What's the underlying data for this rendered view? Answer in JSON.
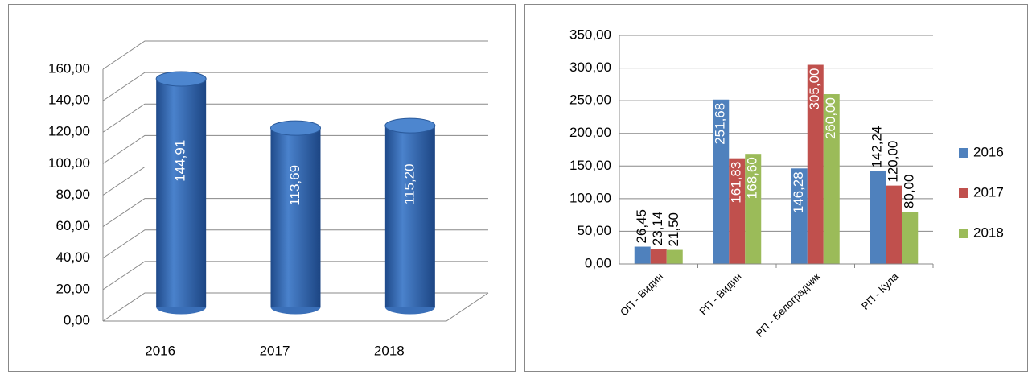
{
  "chart_data": [
    {
      "type": "cylinder",
      "categories": [
        "2016",
        "2017",
        "2018"
      ],
      "values": [
        144.91,
        113.69,
        115.2
      ],
      "value_labels": [
        "144,91",
        "113,69",
        "115,20"
      ],
      "color": "#3a6fb8",
      "ylim": [
        0,
        160
      ],
      "yticks": [
        {
          "value": 0,
          "label": "0,00"
        },
        {
          "value": 20,
          "label": "20,00"
        },
        {
          "value": 40,
          "label": "40,00"
        },
        {
          "value": 60,
          "label": "60,00"
        },
        {
          "value": 80,
          "label": "80,00"
        },
        {
          "value": 100,
          "label": "100,00"
        },
        {
          "value": 120,
          "label": "120,00"
        },
        {
          "value": 140,
          "label": "140,00"
        },
        {
          "value": 160,
          "label": "160,00"
        }
      ],
      "grid": true
    },
    {
      "type": "bar",
      "categories": [
        "ОП - Видин",
        "РП - Видин",
        "РП - Белоградчик",
        "РП - Кула"
      ],
      "series": [
        {
          "name": "2016",
          "color": "#4f81bd",
          "values": [
            26.45,
            251.68,
            146.28,
            142.24
          ],
          "value_labels": [
            "26,45",
            "251,68",
            "146,28",
            "142,24"
          ]
        },
        {
          "name": "2017",
          "color": "#c0504d",
          "values": [
            23.14,
            161.83,
            305.0,
            120.0
          ],
          "value_labels": [
            "23,14",
            "161,83",
            "305,00",
            "120,00"
          ]
        },
        {
          "name": "2018",
          "color": "#9bbb59",
          "values": [
            21.5,
            168.6,
            260.0,
            80.0
          ],
          "value_labels": [
            "21,50",
            "168,60",
            "260,00",
            "80,00"
          ]
        }
      ],
      "ylim": [
        0,
        350
      ],
      "yticks": [
        {
          "value": 0,
          "label": "0,00"
        },
        {
          "value": 50,
          "label": "50,00"
        },
        {
          "value": 100,
          "label": "100,00"
        },
        {
          "value": 150,
          "label": "150,00"
        },
        {
          "value": 200,
          "label": "200,00"
        },
        {
          "value": 250,
          "label": "250,00"
        },
        {
          "value": 300,
          "label": "300,00"
        },
        {
          "value": 350,
          "label": "350,00"
        }
      ],
      "grid": true,
      "legend": "right"
    }
  ]
}
